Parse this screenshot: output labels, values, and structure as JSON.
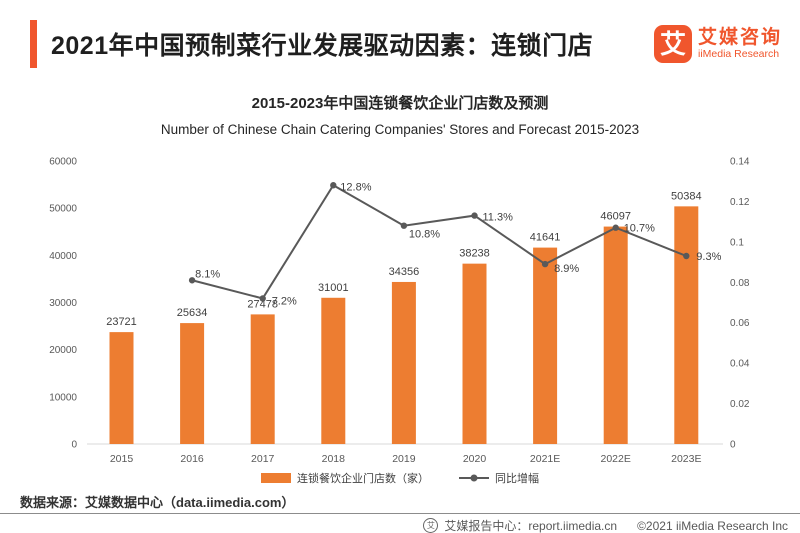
{
  "header": {
    "title": "2021年中国预制菜行业发展驱动因素：连锁门店",
    "accent_color": "#F0562D",
    "logo": {
      "glyph": "艾",
      "name_cn": "艾媒咨询",
      "name_en": "iiMedia Research",
      "color": "#F0562D"
    }
  },
  "chart": {
    "title_cn": "2015-2023年中国连锁餐饮企业门店数及预测",
    "title_en": "Number of Chinese Chain Catering Companies' Stores and Forecast 2015-2023",
    "legend": [
      {
        "label": "连锁餐饮企业门店数（家）",
        "type": "bar"
      },
      {
        "label": "同比增幅",
        "type": "line"
      }
    ]
  },
  "chart_data": {
    "type": "bar",
    "categories": [
      "2015",
      "2016",
      "2017",
      "2018",
      "2019",
      "2020",
      "2021E",
      "2022E",
      "2023E"
    ],
    "series": [
      {
        "name": "连锁餐饮企业门店数（家）",
        "type": "bar",
        "axis": "left",
        "color": "#ED7D31",
        "values": [
          23721,
          25634,
          27478,
          31001,
          34356,
          38238,
          41641,
          46097,
          50384
        ],
        "labels": [
          "23721",
          "25634",
          "27478",
          "31001",
          "34356",
          "38238",
          "41641",
          "46097",
          "50384"
        ]
      },
      {
        "name": "同比增幅",
        "type": "line",
        "axis": "right",
        "color": "#595959",
        "values": [
          null,
          0.081,
          0.072,
          0.128,
          0.108,
          0.113,
          0.089,
          0.107,
          0.093
        ],
        "labels": [
          null,
          "8.1%",
          "7.2%",
          "12.8%",
          "10.8%",
          "11.3%",
          "8.9%",
          "10.7%",
          "9.3%"
        ]
      }
    ],
    "y_left": {
      "min": 0,
      "max": 60000,
      "tick_labels": [
        "0",
        "10000",
        "20000",
        "30000",
        "40000",
        "50000",
        "60000"
      ]
    },
    "y_right": {
      "min": 0,
      "max": 0.14,
      "tick_labels": [
        "0",
        "0.02",
        "0.04",
        "0.06",
        "0.08",
        "0.1",
        "0.12",
        "0.14"
      ]
    },
    "grid": false,
    "legend_position": "bottom",
    "title": "2015-2023年中国连锁餐饮企业门店数及预测",
    "xlabel": "",
    "ylabel_left": "",
    "ylabel_right": ""
  },
  "source_note": "数据来源：艾媒数据中心（data.iimedia.com）",
  "footer": {
    "icon_glyph": "艾",
    "report_center": "艾媒报告中心：report.iimedia.cn",
    "copyright": "©2021  iiMedia Research  Inc"
  }
}
